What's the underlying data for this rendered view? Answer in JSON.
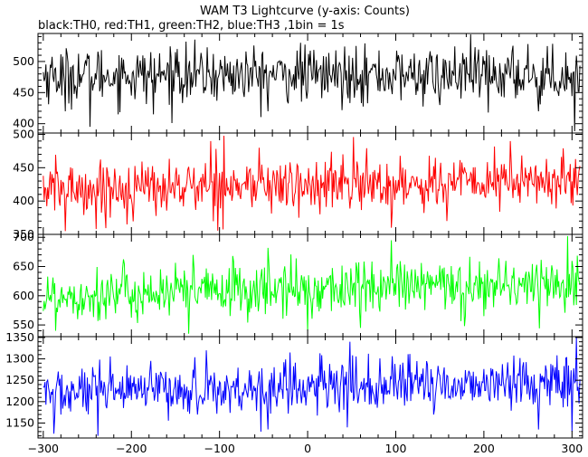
{
  "title": "WAM T3 Lightcurve (y-axis: Counts)",
  "subtitle": "black:TH0, red:TH1, green:TH2, blue:TH3 ,1bin = 1s",
  "chart_data": [
    {
      "type": "line",
      "name": "TH0",
      "color": "#000000",
      "xlim": [
        -306,
        312
      ],
      "ylim": [
        385,
        545
      ],
      "yticks": [
        400,
        450,
        500
      ],
      "x_start": -300,
      "x_step": 1,
      "n_points": 610,
      "mean": 478,
      "noise": 22,
      "trend": 0,
      "dips": [
        [
          -275,
          420
        ],
        [
          -247,
          395
        ],
        [
          -175,
          415
        ],
        [
          -45,
          420
        ],
        [
          150,
          430
        ],
        [
          205,
          418
        ],
        [
          262,
          420
        ],
        [
          303,
          388
        ]
      ],
      "peaks": [
        [
          -148,
          520
        ],
        [
          -8,
          530
        ],
        [
          55,
          525
        ],
        [
          250,
          528
        ]
      ]
    },
    {
      "type": "line",
      "name": "TH1",
      "color": "#ff0000",
      "xlim": [
        -306,
        312
      ],
      "ylim": [
        350,
        502
      ],
      "yticks": [
        350,
        400,
        450,
        500
      ],
      "x_start": -300,
      "x_step": 1,
      "n_points": 610,
      "mean": 418,
      "noise": 20,
      "trend": 12,
      "dips": [
        [
          -275,
          355
        ],
        [
          -240,
          358
        ],
        [
          -205,
          365
        ],
        [
          -10,
          375
        ],
        [
          95,
          360
        ],
        [
          158,
          370
        ]
      ],
      "peaks": [
        [
          -110,
          490
        ],
        [
          -95,
          498
        ],
        [
          -55,
          480
        ],
        [
          52,
          496
        ],
        [
          230,
          490
        ]
      ]
    },
    {
      "type": "line",
      "name": "TH2",
      "color": "#00ff00",
      "xlim": [
        -306,
        312
      ],
      "ylim": [
        530,
        705
      ],
      "yticks": [
        550,
        600,
        650,
        700
      ],
      "x_start": -300,
      "x_step": 1,
      "n_points": 610,
      "mean": 600,
      "noise": 23,
      "trend": 22,
      "dips": [
        [
          -286,
          540
        ],
        [
          -135,
          535
        ],
        [
          0,
          540
        ],
        [
          60,
          545
        ],
        [
          178,
          548
        ]
      ],
      "peaks": [
        [
          -130,
          670
        ],
        [
          -85,
          668
        ],
        [
          -45,
          682
        ],
        [
          95,
          695
        ],
        [
          295,
          702
        ]
      ]
    },
    {
      "type": "line",
      "name": "TH3",
      "color": "#0000ff",
      "xlim": [
        -306,
        312
      ],
      "ylim": [
        1115,
        1352
      ],
      "yticks": [
        1150,
        1200,
        1250,
        1300,
        1350
      ],
      "x_start": -300,
      "x_step": 1,
      "n_points": 610,
      "mean": 1218,
      "noise": 30,
      "trend": 30,
      "dips": [
        [
          -288,
          1125
        ],
        [
          -238,
          1120
        ],
        [
          -45,
          1135
        ],
        [
          45,
          1140
        ],
        [
          262,
          1135
        ],
        [
          300,
          1130
        ]
      ],
      "peaks": [
        [
          -115,
          1320
        ],
        [
          -20,
          1315
        ],
        [
          48,
          1340
        ],
        [
          305,
          1350
        ]
      ]
    }
  ],
  "x_axis": {
    "ticks": [
      -300,
      -200,
      -100,
      0,
      100,
      200,
      300
    ],
    "tick_labels": [
      "−300",
      "−200",
      "−100",
      "0",
      "100",
      "200",
      "300"
    ]
  }
}
